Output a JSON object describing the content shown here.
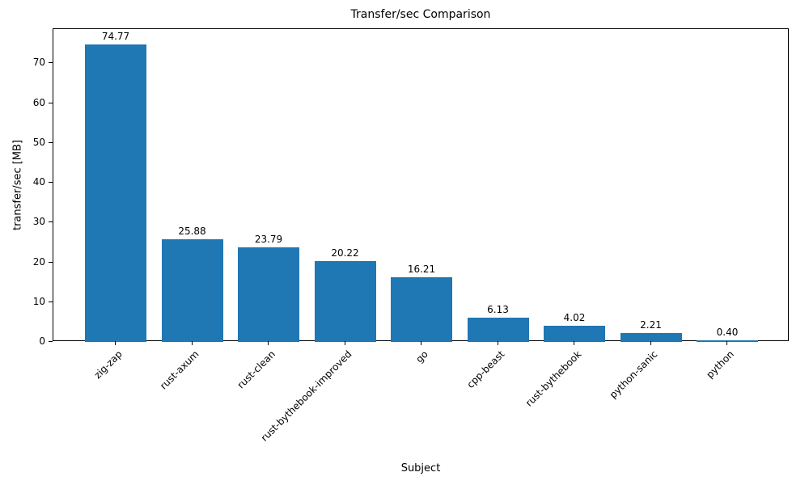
{
  "chart_data": {
    "type": "bar",
    "title": "Transfer/sec Comparison",
    "xlabel": "Subject",
    "ylabel": "transfer/sec [MB]",
    "categories": [
      "zig-zap",
      "rust-axum",
      "rust-clean",
      "rust-bythebook-improved",
      "go",
      "cpp-beast",
      "rust-bythebook",
      "python-sanic",
      "python"
    ],
    "values": [
      74.77,
      25.88,
      23.79,
      20.22,
      16.21,
      6.13,
      4.02,
      2.21,
      0.4
    ],
    "value_labels": [
      "74.77",
      "25.88",
      "23.79",
      "20.22",
      "16.21",
      "6.13",
      "4.02",
      "2.21",
      "0.40"
    ],
    "ylim": [
      0,
      78.6
    ],
    "yticks": [
      0,
      10,
      20,
      30,
      40,
      50,
      60,
      70
    ],
    "bar_color": "#1f77b4",
    "grid": false,
    "legend_position": "none",
    "x_tick_rotation_deg": 45
  }
}
